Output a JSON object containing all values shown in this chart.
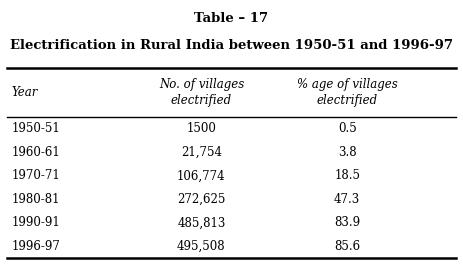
{
  "title": "Table – 17",
  "subtitle": "Electrification in Rural India between 1950-51 and 1996-97",
  "col_headers": [
    "Year",
    "No. of villages\nelectrified",
    "% age of villages\nelectrified"
  ],
  "rows": [
    [
      "1950-51",
      "1500",
      "0.5"
    ],
    [
      "1960-61",
      "21,754",
      "3.8"
    ],
    [
      "1970-71",
      "106,774",
      "18.5"
    ],
    [
      "1980-81",
      "272,625",
      "47.3"
    ],
    [
      "1990-91",
      "485,813",
      "83.9"
    ],
    [
      "1996-97",
      "495,508",
      "85.6"
    ]
  ],
  "bg_color": "#ffffff",
  "text_color": "#000000",
  "header_fontsize": 8.5,
  "data_fontsize": 8.5,
  "title_fontsize": 9.5,
  "subtitle_fontsize": 9.5
}
